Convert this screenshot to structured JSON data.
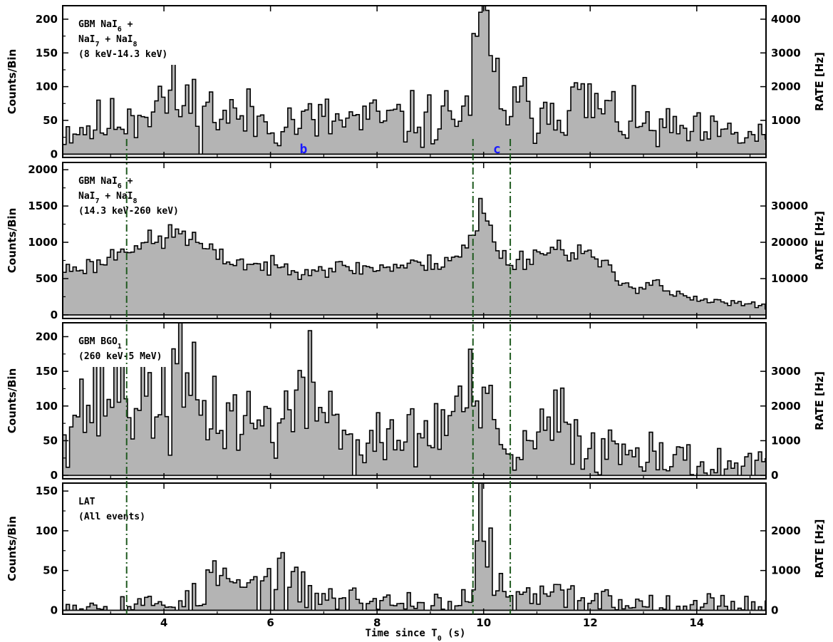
{
  "chart_data": {
    "type": "area",
    "x_axis": {
      "label_main": "Time since T",
      "label_sub": "0",
      "label_unit": "(s)",
      "xlim": [
        2.1,
        15.3
      ],
      "ticks": [
        4,
        6,
        8,
        10,
        12,
        14
      ]
    },
    "y_axis_label": "Counts/Bin",
    "y2_axis_label": "RATE [Hz]",
    "grid": false,
    "vertical_lines": [
      3.3,
      9.8,
      10.5
    ],
    "point_labels": [
      {
        "text": "b",
        "x": 6.62,
        "y": 0
      },
      {
        "text": "c",
        "x": 10.25,
        "y": 0
      }
    ],
    "panels": [
      {
        "label_lines": [
          [
            {
              "t": "GBM NaI"
            },
            {
              "t": "6",
              "sub": true
            },
            {
              "t": " +"
            }
          ],
          [
            {
              "t": " NaI"
            },
            {
              "t": "7",
              "sub": true
            },
            {
              "t": " + NaI"
            },
            {
              "t": "8",
              "sub": true
            }
          ],
          [
            {
              "t": " (8 keV-14.3 keV)"
            }
          ]
        ],
        "ylim": [
          -5,
          220
        ],
        "yticks": [
          0,
          50,
          100,
          150,
          200
        ],
        "y2ticks": [
          1000,
          2000,
          3000,
          4000
        ],
        "y2scale": 20,
        "series": {
          "bin_width": 0.064,
          "x_start": 2.1,
          "key_points": [
            [
              2.1,
              35
            ],
            [
              3.0,
              45
            ],
            [
              3.9,
              80
            ],
            [
              4.3,
              78
            ],
            [
              5.0,
              60
            ],
            [
              6.0,
              48
            ],
            [
              7.0,
              48
            ],
            [
              8.0,
              50
            ],
            [
              9.0,
              48
            ],
            [
              9.7,
              68
            ],
            [
              9.85,
              120
            ],
            [
              9.95,
              195
            ],
            [
              10.05,
              160
            ],
            [
              10.2,
              105
            ],
            [
              10.5,
              65
            ],
            [
              11.0,
              70
            ],
            [
              11.5,
              78
            ],
            [
              12.0,
              72
            ],
            [
              12.5,
              55
            ],
            [
              13.0,
              40
            ],
            [
              14.0,
              30
            ],
            [
              15.3,
              25
            ]
          ],
          "amplitude": 0.3,
          "min_noise": 6,
          "seed": 11
        }
      },
      {
        "label_lines": [
          [
            {
              "t": "GBM NaI"
            },
            {
              "t": "6",
              "sub": true
            },
            {
              "t": " +"
            }
          ],
          [
            {
              "t": " NaI"
            },
            {
              "t": "7",
              "sub": true
            },
            {
              "t": " + NaI"
            },
            {
              "t": "8",
              "sub": true
            }
          ],
          [
            {
              "t": " (14.3 keV-260 keV)"
            }
          ]
        ],
        "ylim": [
          -50,
          2100
        ],
        "yticks": [
          0,
          500,
          1000,
          1500,
          2000
        ],
        "y2ticks": [
          10000,
          20000,
          30000
        ],
        "y2scale": 20,
        "series": {
          "bin_width": 0.064,
          "x_start": 2.1,
          "key_points": [
            [
              2.1,
              620
            ],
            [
              2.8,
              700
            ],
            [
              3.3,
              960
            ],
            [
              3.9,
              1000
            ],
            [
              4.3,
              1170
            ],
            [
              4.6,
              1000
            ],
            [
              5.0,
              790
            ],
            [
              6.0,
              650
            ],
            [
              7.0,
              640
            ],
            [
              8.0,
              650
            ],
            [
              9.0,
              700
            ],
            [
              9.5,
              820
            ],
            [
              9.7,
              960
            ],
            [
              9.85,
              1100
            ],
            [
              9.95,
              1550
            ],
            [
              10.05,
              1300
            ],
            [
              10.2,
              1000
            ],
            [
              10.5,
              700
            ],
            [
              11.0,
              850
            ],
            [
              11.5,
              930
            ],
            [
              12.0,
              820
            ],
            [
              12.3,
              650
            ],
            [
              12.6,
              420
            ],
            [
              13.0,
              380
            ],
            [
              13.2,
              520
            ],
            [
              13.4,
              330
            ],
            [
              14.0,
              200
            ],
            [
              15.3,
              120
            ]
          ],
          "amplitude": 0.07,
          "min_noise": 15,
          "seed": 23
        }
      },
      {
        "label_lines": [
          [
            {
              "t": "GBM BGO"
            },
            {
              "t": "1",
              "sub": true
            }
          ],
          [
            {
              "t": "(260 keV-5 MeV)"
            }
          ]
        ],
        "ylim": [
          -5,
          220
        ],
        "yticks": [
          0,
          50,
          100,
          150,
          200
        ],
        "y2ticks": [
          0,
          1000,
          2000,
          3000
        ],
        "y2scale": 20,
        "series": {
          "bin_width": 0.064,
          "x_start": 2.1,
          "key_points": [
            [
              2.1,
              90
            ],
            [
              2.8,
              110
            ],
            [
              3.1,
              140
            ],
            [
              3.5,
              110
            ],
            [
              4.0,
              110
            ],
            [
              4.3,
              135
            ],
            [
              4.6,
              100
            ],
            [
              5.0,
              90
            ],
            [
              5.8,
              75
            ],
            [
              6.3,
              85
            ],
            [
              6.8,
              120
            ],
            [
              7.2,
              90
            ],
            [
              7.5,
              40
            ],
            [
              8.0,
              45
            ],
            [
              8.5,
              55
            ],
            [
              9.0,
              60
            ],
            [
              9.5,
              90
            ],
            [
              9.65,
              130
            ],
            [
              9.8,
              90
            ],
            [
              9.95,
              110
            ],
            [
              10.2,
              60
            ],
            [
              10.5,
              20
            ],
            [
              11.0,
              50
            ],
            [
              11.4,
              80
            ],
            [
              11.8,
              50
            ],
            [
              12.3,
              35
            ],
            [
              13.1,
              40
            ],
            [
              13.2,
              70
            ],
            [
              13.4,
              25
            ],
            [
              14.0,
              15
            ],
            [
              15.3,
              15
            ]
          ],
          "amplitude": 0.3,
          "min_noise": 8,
          "seed": 37
        }
      },
      {
        "label_lines": [
          [
            {
              "t": "LAT"
            }
          ],
          [
            {
              "t": "(All events)"
            }
          ]
        ],
        "ylim": [
          -5,
          160
        ],
        "yticks": [
          0,
          50,
          100,
          150
        ],
        "y2ticks": [
          0,
          1000,
          2000
        ],
        "y2scale": 20,
        "series": {
          "bin_width": 0.064,
          "x_start": 2.1,
          "key_points": [
            [
              2.1,
              6
            ],
            [
              4.0,
              8
            ],
            [
              4.8,
              15
            ],
            [
              4.9,
              55
            ],
            [
              5.2,
              30
            ],
            [
              5.9,
              25
            ],
            [
              6.0,
              60
            ],
            [
              6.2,
              30
            ],
            [
              7.0,
              15
            ],
            [
              8.0,
              10
            ],
            [
              9.5,
              8
            ],
            [
              9.85,
              12
            ],
            [
              9.92,
              130
            ],
            [
              10.0,
              120
            ],
            [
              10.2,
              50
            ],
            [
              10.4,
              12
            ],
            [
              11.0,
              15
            ],
            [
              11.5,
              18
            ],
            [
              12.0,
              14
            ],
            [
              13.0,
              8
            ],
            [
              15.3,
              6
            ]
          ],
          "amplitude": 0.45,
          "min_noise": 4,
          "seed": 53
        }
      }
    ]
  }
}
